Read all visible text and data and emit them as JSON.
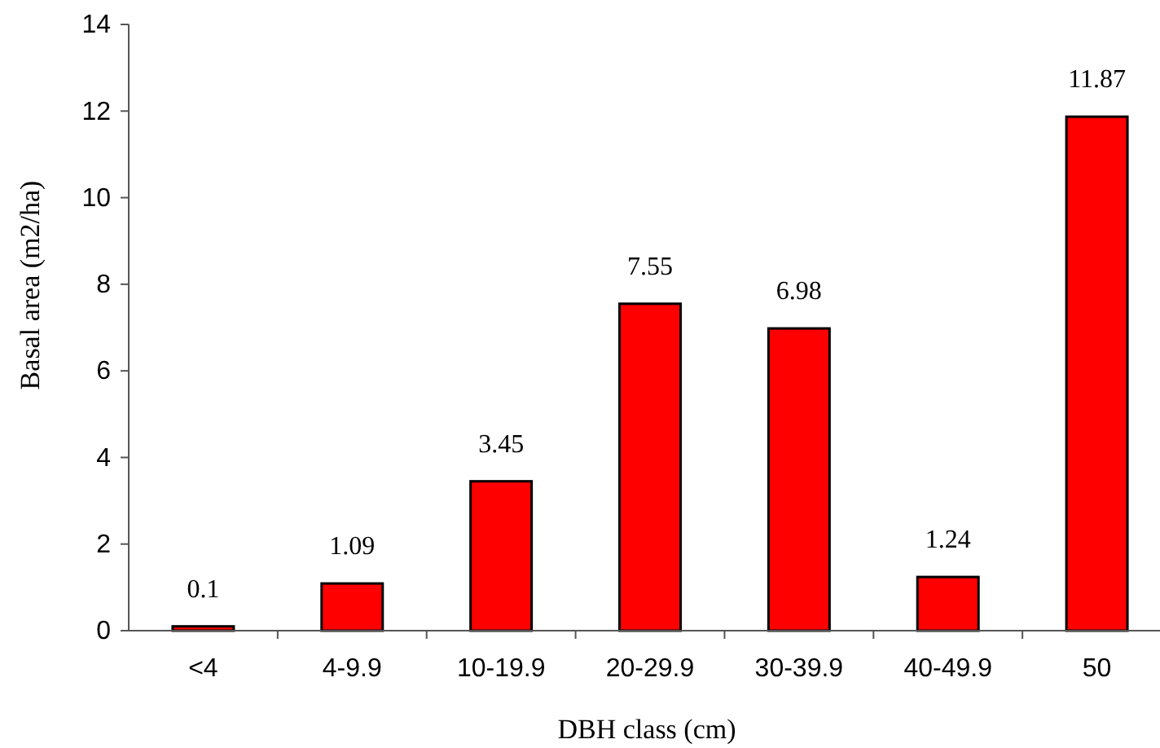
{
  "chart_data": {
    "type": "bar",
    "xlabel": "DBH class (cm)",
    "ylabel": "Basal area (m2/ha)",
    "categories": [
      "<4",
      "4-9.9",
      "10-19.9",
      "20-29.9",
      "30-39.9",
      "40-49.9",
      "50"
    ],
    "values": [
      0.1,
      1.09,
      3.45,
      7.55,
      6.98,
      1.24,
      11.87
    ],
    "color": "#ff0000",
    "ylim": [
      0,
      14
    ],
    "yticks": [
      0,
      2,
      4,
      6,
      8,
      10,
      12,
      14
    ],
    "data_labels": true
  }
}
